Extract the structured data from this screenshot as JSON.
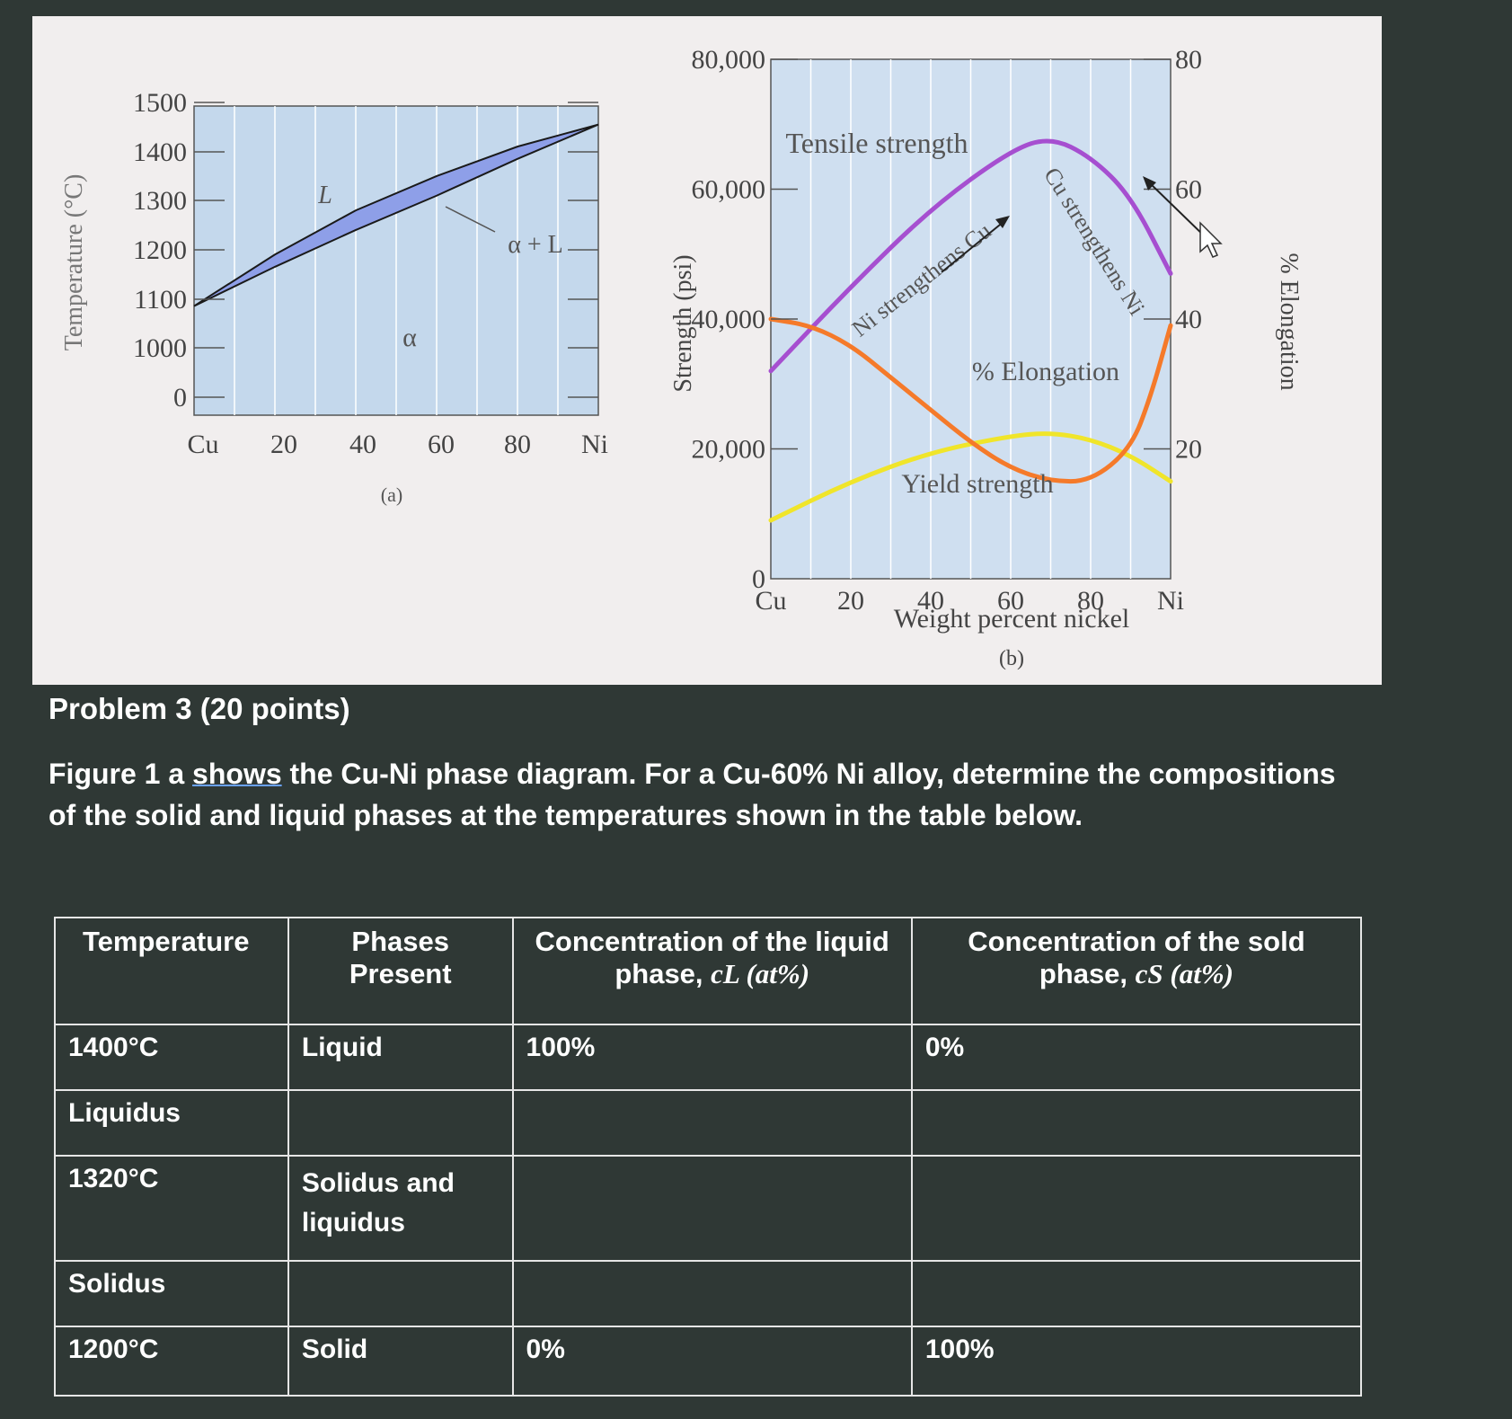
{
  "figure": {
    "panel_a": {
      "y_axis_label": "Temperature (°C)",
      "y_ticks": [
        "1500",
        "1400",
        "1300",
        "1200",
        "1100",
        "1000",
        "0"
      ],
      "x_ticks": [
        "Cu",
        "20",
        "40",
        "60",
        "80",
        "Ni"
      ],
      "region_labels": {
        "liquid": "L",
        "two_phase": "α + L",
        "solid": "α"
      },
      "caption": "(a)",
      "liquidus": [
        [
          0,
          1085
        ],
        [
          20,
          1190
        ],
        [
          40,
          1280
        ],
        [
          60,
          1350
        ],
        [
          80,
          1410
        ],
        [
          100,
          1455
        ]
      ],
      "solidus": [
        [
          0,
          1085
        ],
        [
          20,
          1165
        ],
        [
          40,
          1240
        ],
        [
          60,
          1310
        ],
        [
          80,
          1385
        ],
        [
          100,
          1455
        ]
      ],
      "colors": {
        "two_phase_fill": "#8e9fe8",
        "plot_bg": "#c4d8ec"
      }
    },
    "panel_b": {
      "y_left_label": "Strength (psi)",
      "y_left_ticks": [
        "80,000",
        "60,000",
        "40,000",
        "20,000",
        "0"
      ],
      "y_right_label": "% Elongation",
      "y_right_ticks": [
        "80",
        "60",
        "40",
        "20"
      ],
      "x_ticks": [
        "Cu",
        "20",
        "40",
        "60",
        "80",
        "Ni"
      ],
      "x_label": "Weight percent nickel",
      "caption": "(b)",
      "annotations": {
        "tensile": "Tensile strength",
        "ni_strengthens": "Ni strengthens Cu",
        "cu_strengthens": "Cu strengthens Ni",
        "elongation": "% Elongation",
        "yield": "Yield strength"
      },
      "series": [
        {
          "name": "Tensile strength",
          "color": "#a64fd0",
          "axis": "left",
          "points": [
            [
              0,
              32000
            ],
            [
              20,
              45000
            ],
            [
              40,
              57000
            ],
            [
              60,
              66000
            ],
            [
              70,
              68000
            ],
            [
              80,
              65000
            ],
            [
              90,
              59000
            ],
            [
              100,
              47000
            ]
          ]
        },
        {
          "name": "Yield strength",
          "color": "#f0e52a",
          "axis": "left",
          "points": [
            [
              0,
              9000
            ],
            [
              20,
              15000
            ],
            [
              40,
              19500
            ],
            [
              60,
              22000
            ],
            [
              70,
              22500
            ],
            [
              80,
              21500
            ],
            [
              90,
              19000
            ],
            [
              100,
              15000
            ]
          ]
        },
        {
          "name": "% Elongation",
          "color": "#f57a2a",
          "axis": "right",
          "points": [
            [
              0,
              40
            ],
            [
              10,
              39
            ],
            [
              20,
              36
            ],
            [
              30,
              31
            ],
            [
              40,
              26
            ],
            [
              50,
              21
            ],
            [
              60,
              17
            ],
            [
              70,
              15
            ],
            [
              80,
              15
            ],
            [
              90,
              20
            ],
            [
              95,
              28
            ],
            [
              100,
              39
            ]
          ]
        }
      ]
    }
  },
  "problem": {
    "title": "Problem 3 (20 points)",
    "text_before": "Figure 1 a ",
    "text_link": "shows",
    "text_after": " the Cu-Ni phase diagram.  For a Cu-60% Ni alloy, determine the compositions of the solid and liquid phases at the temperatures shown in the table below."
  },
  "table": {
    "headers": {
      "temperature": "Temperature",
      "phases": "Phases Present",
      "liquid_line1": "Concentration of the liquid",
      "liquid_line2_prefix": "phase, ",
      "liquid_symbol": "cL (at%)",
      "solid_line1": "Concentration of the sold",
      "solid_line2_prefix": "phase, ",
      "solid_symbol": "cS (at%)"
    },
    "rows": [
      {
        "temperature": "1400°C",
        "phases": "Liquid",
        "liquid": "100%",
        "solid": "0%"
      },
      {
        "temperature": "Liquidus",
        "phases": "",
        "liquid": "",
        "solid": ""
      },
      {
        "temperature": "1320°C",
        "phases": "Solidus and liquidus",
        "liquid": "",
        "solid": ""
      },
      {
        "temperature": "Solidus",
        "phases": "",
        "liquid": "",
        "solid": ""
      },
      {
        "temperature": "1200°C",
        "phases": "Solid",
        "liquid": "0%",
        "solid": "100%"
      }
    ]
  }
}
